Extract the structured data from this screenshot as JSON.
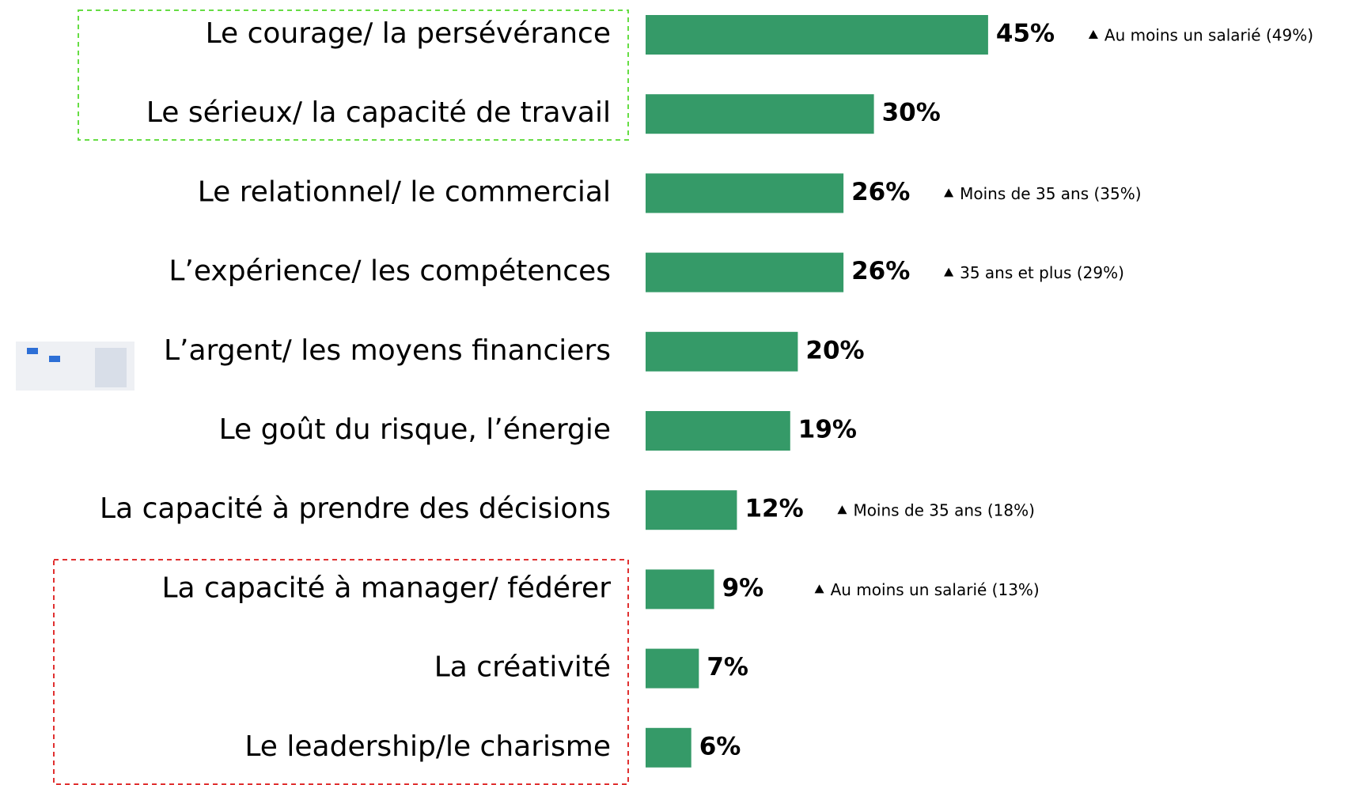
{
  "chart_data": {
    "type": "hbar",
    "categories": [
      "Le courage/ la persévérance",
      "Le sérieux/ la capacité de travail",
      "Le relationnel/ le commercial",
      "L’expérience/ les compétences",
      "L’argent/ les moyens financiers",
      "Le goût du risque, l’énergie",
      "La capacité à prendre des décisions",
      "La capacité à manager/ fédérer",
      "La créativité",
      "Le leadership/le charisme"
    ],
    "values": [
      45,
      30,
      26,
      26,
      20,
      19,
      12,
      9,
      7,
      6
    ],
    "value_labels": [
      "45%",
      "30%",
      "26%",
      "26%",
      "20%",
      "19%",
      "12%",
      "9%",
      "7%",
      "6%"
    ],
    "annotations": [
      "Au moins un salarié (49%)",
      null,
      "Moins de 35 ans (35%)",
      "35 ans et plus (29%)",
      null,
      null,
      "Moins de 35 ans (18%)",
      "Au moins un salarié (13%)",
      null,
      null
    ],
    "color": "#359a68"
  }
}
